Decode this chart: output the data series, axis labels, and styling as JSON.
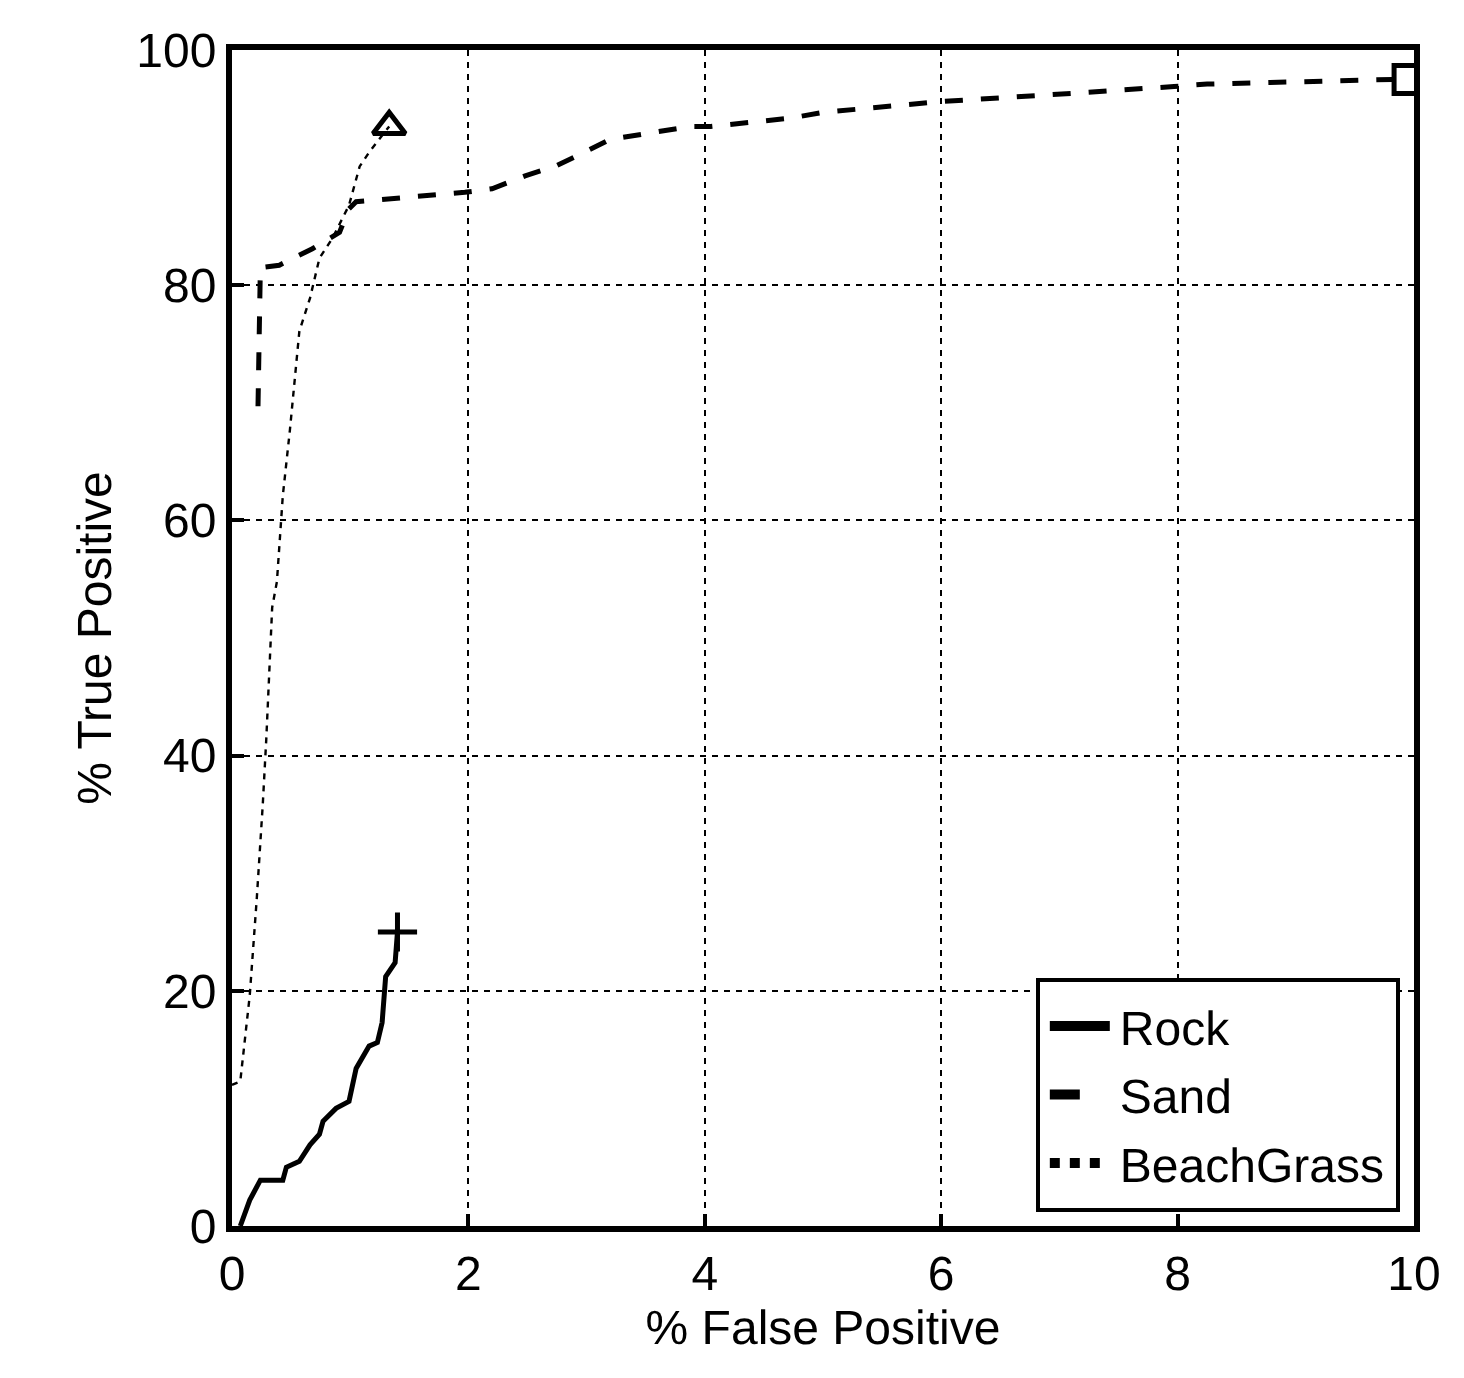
{
  "chart_data": {
    "type": "line",
    "xlabel": "% False Positive",
    "ylabel": "% True Positive",
    "xlim": [
      0,
      10
    ],
    "xticks": [
      0,
      2,
      4,
      6,
      8,
      10
    ],
    "ylim": [
      0,
      100
    ],
    "yticks": [
      0,
      20,
      40,
      60,
      80,
      100
    ],
    "grid": true,
    "legend": "bottom right",
    "series": [
      {
        "name": "Rock",
        "color": "#000000",
        "line_style": "solid",
        "x": [
          0.07,
          0.15,
          0.24,
          0.43,
          0.46,
          0.57,
          0.66,
          0.74,
          0.77,
          0.88,
          0.99,
          1.05,
          1.16,
          1.23,
          1.27,
          1.3,
          1.38,
          1.4
        ],
        "values": [
          0,
          2.2,
          3.9,
          3.9,
          5,
          5.5,
          6.9,
          7.8,
          8.9,
          10,
          10.6,
          13.4,
          15.3,
          15.6,
          17.3,
          21.2,
          22.4,
          25
        ]
      },
      {
        "name": "Sand",
        "color": "#000000",
        "line_style": "dashed",
        "x": [
          0.22,
          0.24,
          0.4,
          0.68,
          0.91,
          0.99,
          1.05,
          1.97,
          2.2,
          2.48,
          2.73,
          2.98,
          3.2,
          3.88,
          4.05,
          4.72,
          5.0,
          5.98,
          7.24,
          7.97,
          8.25,
          9.82,
          9.95
        ],
        "values": [
          69.7,
          81.5,
          81.7,
          83.1,
          84.5,
          86.5,
          87.1,
          87.9,
          88.2,
          89.3,
          90.1,
          91.3,
          92.4,
          93.5,
          93.5,
          94.2,
          94.7,
          95.6,
          96.4,
          96.9,
          97.1,
          97.5,
          97.5
        ]
      },
      {
        "name": "BeachGrass",
        "color": "#000000",
        "line_style": "dotted",
        "x": [
          0.0,
          0.07,
          0.15,
          0.21,
          0.26,
          0.29,
          0.34,
          0.38,
          0.43,
          0.49,
          0.57,
          0.66,
          0.74,
          0.85,
          0.99,
          1.08,
          1.16,
          1.33
        ],
        "values": [
          12,
          12.3,
          19.6,
          27.9,
          35.8,
          41.4,
          52.6,
          54.8,
          62.1,
          67.7,
          76.1,
          78.9,
          82.3,
          84.0,
          86.8,
          90.1,
          91.3,
          93.5
        ]
      },
      {
        "type": "scatter",
        "color": "#000000",
        "marker": "cross",
        "x": [
          1.4
        ],
        "values": [
          25
        ]
      },
      {
        "type": "scatter",
        "color": "#000000",
        "marker": "square",
        "x": [
          9.95
        ],
        "values": [
          97.5
        ]
      },
      {
        "type": "scatter",
        "color": "#000000",
        "marker": "triangle",
        "x": [
          1.33
        ],
        "values": [
          93.5
        ]
      }
    ]
  }
}
